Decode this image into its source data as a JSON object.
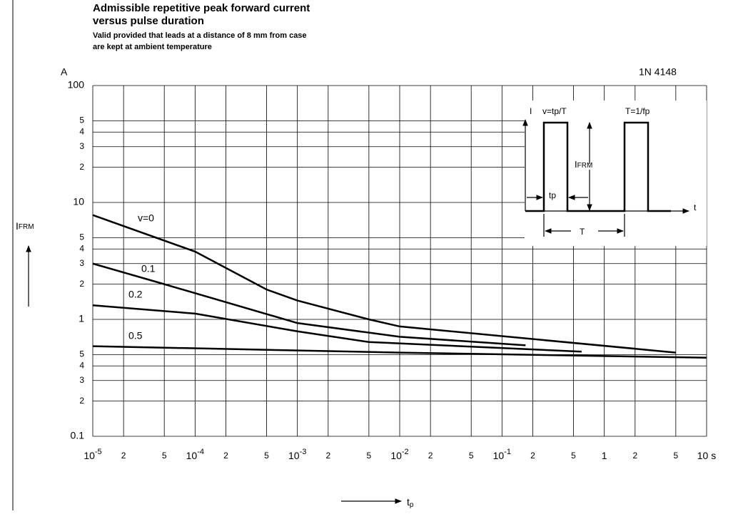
{
  "chart_data": {
    "type": "line",
    "title": [
      "Admissible repetitive peak forward current",
      "versus pulse duration"
    ],
    "subtitle": [
      "Valid provided that leads at a distance of 8 mm from case",
      "are kept at ambient temperature"
    ],
    "part_number": "1N 4148",
    "y_unit": "A",
    "y_label": {
      "main": "I",
      "sub": "FRM"
    },
    "x_label": {
      "main": "t",
      "sub": "p"
    },
    "log_x": true,
    "log_y": true,
    "grid": true,
    "xlim": [
      1e-05,
      10
    ],
    "ylim": [
      0.1,
      100
    ],
    "xticks": [
      {
        "value": 1e-05,
        "label": "10",
        "exponent": "-5"
      },
      {
        "value": 2e-05,
        "label": "2"
      },
      {
        "value": 5e-05,
        "label": "5"
      },
      {
        "value": 0.0001,
        "label": "10",
        "exponent": "-4"
      },
      {
        "value": 0.0002,
        "label": "2"
      },
      {
        "value": 0.0005,
        "label": "5"
      },
      {
        "value": 0.001,
        "label": "10",
        "exponent": "-3"
      },
      {
        "value": 0.002,
        "label": "2"
      },
      {
        "value": 0.005,
        "label": "5"
      },
      {
        "value": 0.01,
        "label": "10",
        "exponent": "-2"
      },
      {
        "value": 0.02,
        "label": "2"
      },
      {
        "value": 0.05,
        "label": "5"
      },
      {
        "value": 0.1,
        "label": "10",
        "exponent": "-1"
      },
      {
        "value": 0.2,
        "label": "2"
      },
      {
        "value": 0.5,
        "label": "5"
      },
      1,
      2,
      5,
      {
        "value": 10,
        "label": "10 s"
      }
    ],
    "yticks": [
      100,
      {
        "value": 50,
        "label": "5"
      },
      {
        "value": 40,
        "label": "4"
      },
      {
        "value": 30,
        "label": "3"
      },
      {
        "value": 20,
        "label": "2"
      },
      10,
      5,
      4,
      3,
      2,
      1,
      {
        "value": 0.5,
        "label": "5"
      },
      {
        "value": 0.4,
        "label": "4"
      },
      {
        "value": 0.3,
        "label": "3"
      },
      {
        "value": 0.2,
        "label": "2"
      },
      0.1
    ],
    "series": [
      {
        "name": "v=0",
        "color": "#000000",
        "x": [
          1e-05,
          0.0001,
          0.0005,
          0.001,
          0.005,
          0.01,
          5
        ],
        "values": [
          7.8,
          3.8,
          1.8,
          1.45,
          1.0,
          0.87,
          0.52
        ]
      },
      {
        "name": "0.1",
        "color": "#000000",
        "x": [
          1e-05,
          5e-05,
          0.001,
          0.01,
          0.17
        ],
        "values": [
          3.0,
          2.0,
          0.93,
          0.71,
          0.6
        ]
      },
      {
        "name": "0.2",
        "color": "#000000",
        "x": [
          1e-05,
          0.0001,
          0.001,
          0.005,
          0.6
        ],
        "values": [
          1.32,
          1.12,
          0.79,
          0.64,
          0.53
        ]
      },
      {
        "name": "0.5",
        "color": "#000000",
        "x": [
          1e-05,
          0.01,
          10
        ],
        "values": [
          0.59,
          0.52,
          0.47
        ]
      }
    ],
    "inset": {
      "y_symbol": "I",
      "v_formula": "v=tp/T",
      "T_formula": "T=1/fp",
      "amplitude": {
        "main": "I",
        "sub": "FRM"
      },
      "pulse_width": "tp",
      "x_symbol": "t",
      "period": "T"
    }
  }
}
